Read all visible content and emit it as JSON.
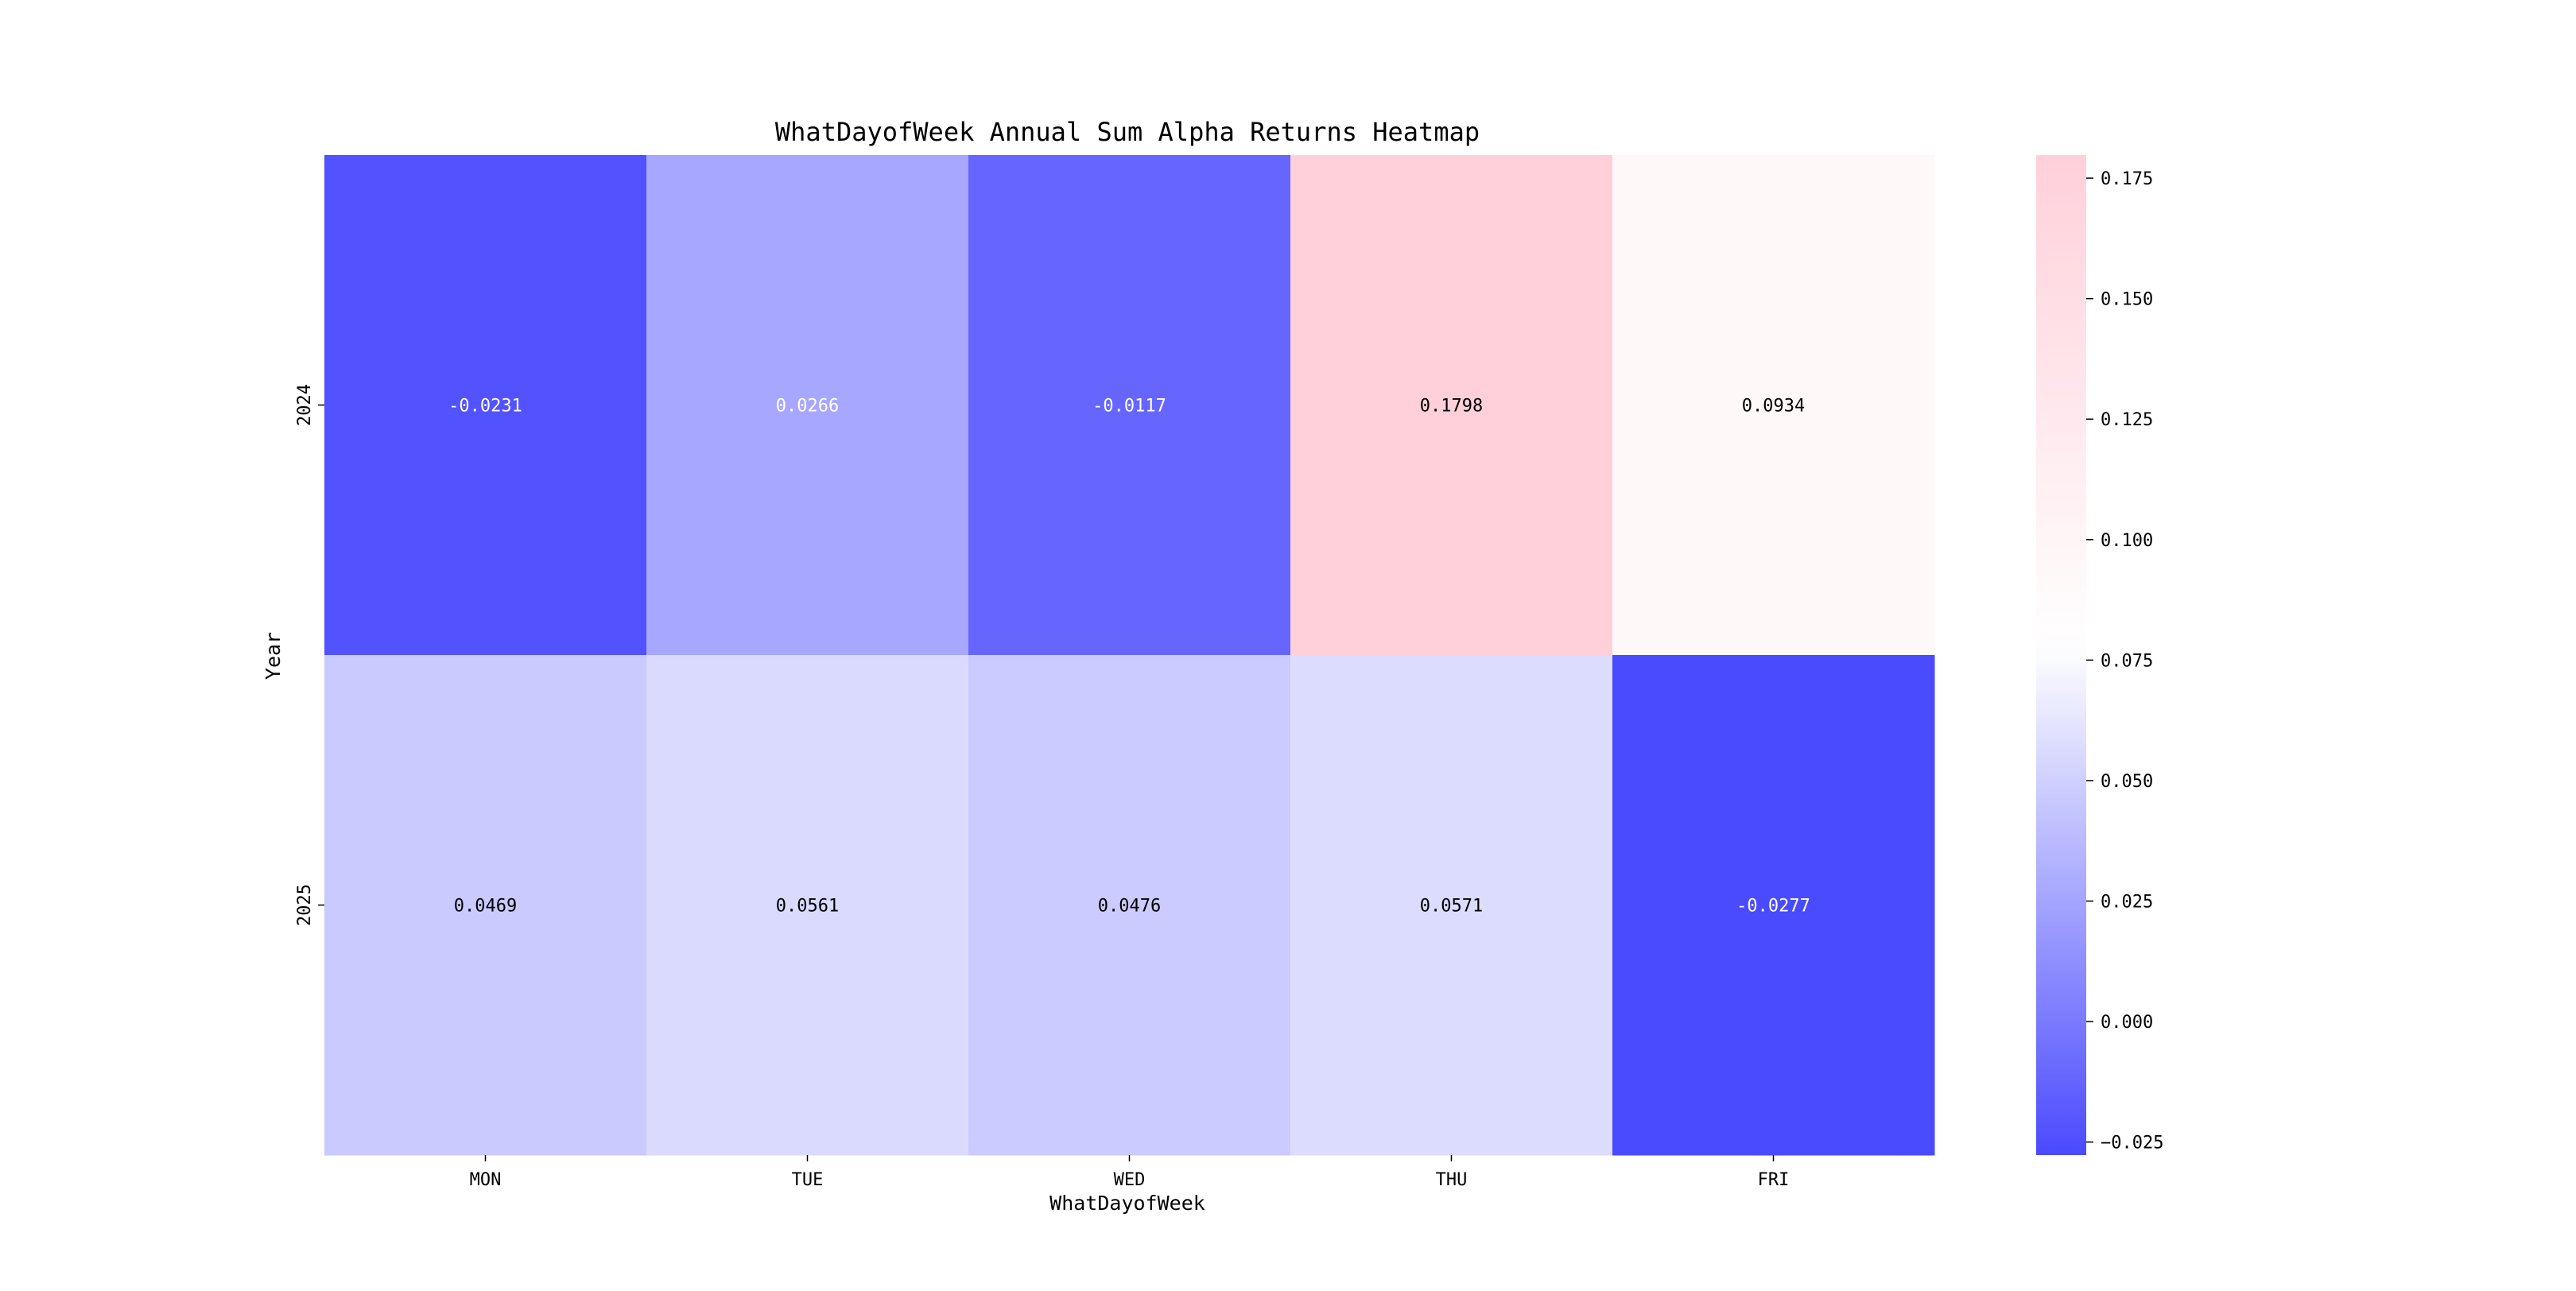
{
  "chart_data": {
    "type": "heatmap",
    "title": "WhatDayofWeek Annual Sum Alpha Returns Heatmap",
    "xlabel": "WhatDayofWeek",
    "ylabel": "Year",
    "x_categories": [
      "MON",
      "TUE",
      "WED",
      "THU",
      "FRI"
    ],
    "y_categories": [
      "2024",
      "2025"
    ],
    "values": [
      [
        -0.0231,
        0.0266,
        -0.0117,
        0.1798,
        0.0934
      ],
      [
        0.0469,
        0.0561,
        0.0476,
        0.0571,
        -0.0277
      ]
    ],
    "cell_labels": [
      [
        "-0.0231",
        "0.0266",
        "-0.0117",
        "0.1798",
        "0.0934"
      ],
      [
        "0.0469",
        "0.0561",
        "0.0476",
        "0.0571",
        "-0.0277"
      ]
    ],
    "colormap": {
      "low_color": "#4a4aff",
      "mid_color": "#ffffff",
      "high_color": "#ffd0da",
      "vmin": -0.0277,
      "vcenter": 0.0776,
      "vmax": 0.1798
    },
    "colorbar": {
      "ticks": [
        0.175,
        0.15,
        0.125,
        0.1,
        0.075,
        0.05,
        0.025,
        0.0,
        -0.025
      ],
      "tick_labels": [
        "0.175",
        "0.150",
        "0.125",
        "0.100",
        "0.075",
        "0.050",
        "0.025",
        "0.000",
        "−0.025"
      ]
    },
    "grid": false
  }
}
